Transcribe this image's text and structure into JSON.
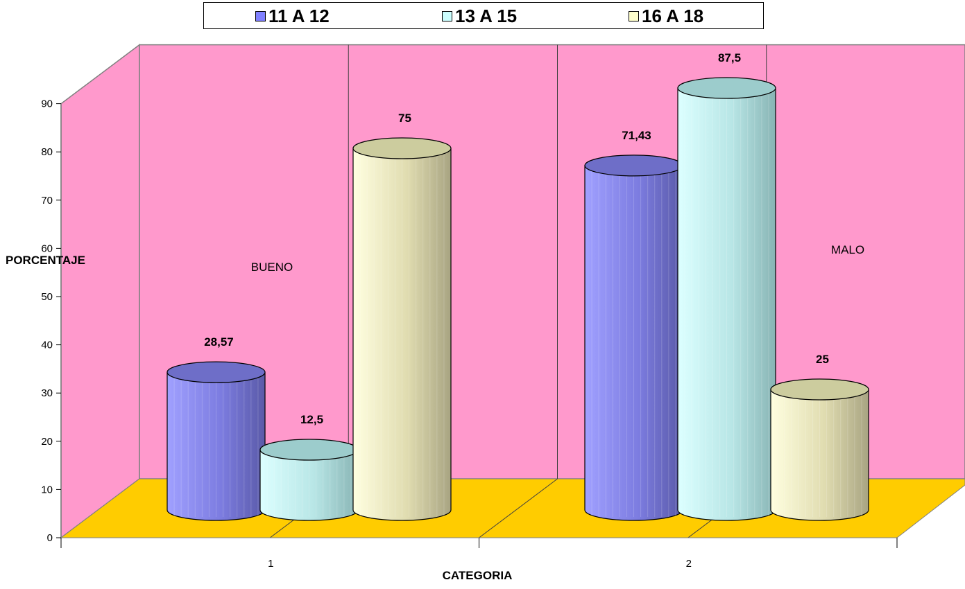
{
  "chart_data": {
    "type": "bar",
    "categories": [
      "1",
      "2"
    ],
    "category_labels": [
      "BUENO",
      "MALO"
    ],
    "series": [
      {
        "name": "11 A 12",
        "values": [
          28.57,
          71.43
        ],
        "labels": [
          "28,57",
          "71,43"
        ],
        "color": "#8080ff"
      },
      {
        "name": "13 A 15",
        "values": [
          12.5,
          87.5
        ],
        "labels": [
          "12,5",
          "87,5"
        ],
        "color": "#ccffff"
      },
      {
        "name": "16 A 18",
        "values": [
          75,
          25
        ],
        "labels": [
          "75",
          "25"
        ],
        "color": "#ffffcc"
      }
    ],
    "ylabel": "PORCENTAJE",
    "xlabel": "CATEGORIA",
    "ylim": [
      0,
      90
    ],
    "yticks": [
      "0",
      "10",
      "20",
      "30",
      "40",
      "50",
      "60",
      "70",
      "80",
      "90"
    ],
    "legend_position": "top",
    "grid": false,
    "three_d": true,
    "wall_color": "#ff99cc",
    "floor_color": "#ffcc00"
  }
}
